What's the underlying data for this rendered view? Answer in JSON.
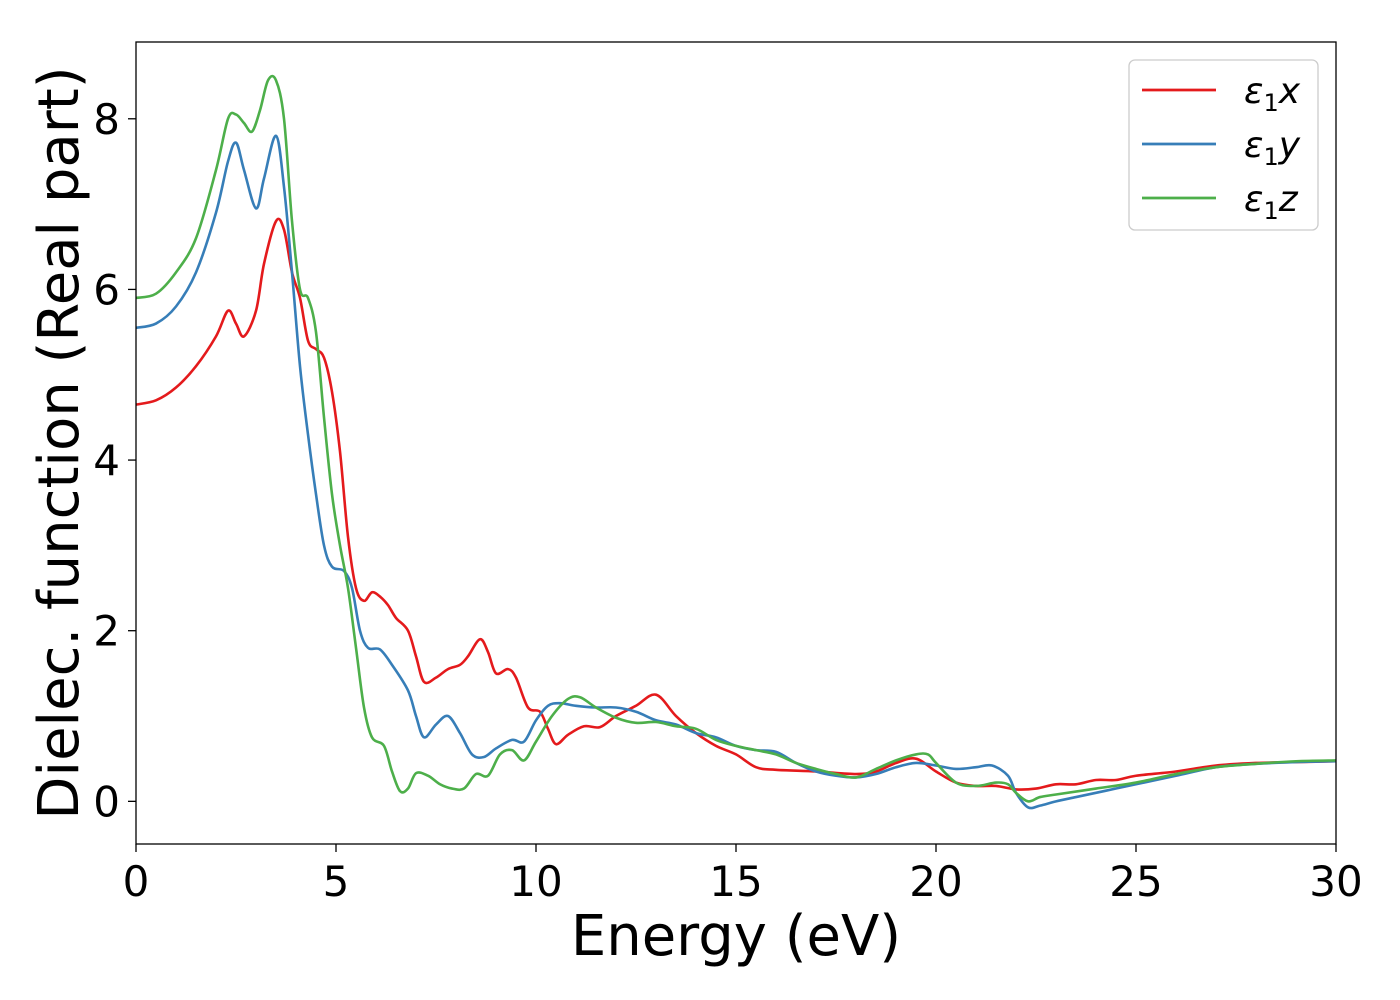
{
  "chart_data": {
    "type": "line",
    "xlabel": "Energy (eV)",
    "ylabel": "Dielec. function (Real part)",
    "xlim": [
      0,
      30
    ],
    "ylim": [
      -0.5,
      8.9
    ],
    "x_ticks": [
      "0",
      "5",
      "10",
      "15",
      "20",
      "25",
      "30"
    ],
    "y_ticks": [
      "0",
      "2",
      "4",
      "6",
      "8"
    ],
    "grid": false,
    "legend_position": "top-right",
    "series": [
      {
        "name": "ε1x",
        "legend_base": "ε",
        "legend_sub": "1",
        "legend_var": "x",
        "color": "#e41a1c",
        "points": [
          [
            0,
            4.65
          ],
          [
            0.5,
            4.7
          ],
          [
            1.0,
            4.85
          ],
          [
            1.5,
            5.1
          ],
          [
            2.0,
            5.45
          ],
          [
            2.3,
            5.75
          ],
          [
            2.5,
            5.6
          ],
          [
            2.7,
            5.45
          ],
          [
            3.0,
            5.75
          ],
          [
            3.2,
            6.3
          ],
          [
            3.5,
            6.8
          ],
          [
            3.7,
            6.7
          ],
          [
            3.9,
            6.2
          ],
          [
            4.1,
            5.9
          ],
          [
            4.3,
            5.4
          ],
          [
            4.5,
            5.3
          ],
          [
            4.7,
            5.2
          ],
          [
            4.9,
            4.8
          ],
          [
            5.1,
            4.1
          ],
          [
            5.3,
            3.1
          ],
          [
            5.5,
            2.5
          ],
          [
            5.7,
            2.35
          ],
          [
            5.9,
            2.45
          ],
          [
            6.1,
            2.4
          ],
          [
            6.3,
            2.3
          ],
          [
            6.5,
            2.15
          ],
          [
            6.8,
            2.0
          ],
          [
            7.0,
            1.7
          ],
          [
            7.2,
            1.4
          ],
          [
            7.5,
            1.45
          ],
          [
            7.8,
            1.55
          ],
          [
            8.1,
            1.6
          ],
          [
            8.3,
            1.7
          ],
          [
            8.6,
            1.9
          ],
          [
            8.8,
            1.75
          ],
          [
            9.0,
            1.5
          ],
          [
            9.3,
            1.55
          ],
          [
            9.5,
            1.45
          ],
          [
            9.8,
            1.1
          ],
          [
            10.1,
            1.05
          ],
          [
            10.3,
            0.85
          ],
          [
            10.5,
            0.67
          ],
          [
            10.8,
            0.78
          ],
          [
            11.2,
            0.88
          ],
          [
            11.6,
            0.87
          ],
          [
            12.0,
            1.0
          ],
          [
            12.5,
            1.12
          ],
          [
            13.0,
            1.25
          ],
          [
            13.5,
            1.0
          ],
          [
            14.0,
            0.8
          ],
          [
            14.5,
            0.65
          ],
          [
            15.0,
            0.55
          ],
          [
            15.5,
            0.4
          ],
          [
            16.0,
            0.37
          ],
          [
            17.0,
            0.35
          ],
          [
            18.0,
            0.32
          ],
          [
            18.5,
            0.35
          ],
          [
            19.0,
            0.45
          ],
          [
            19.5,
            0.5
          ],
          [
            20.0,
            0.35
          ],
          [
            20.5,
            0.22
          ],
          [
            21.0,
            0.18
          ],
          [
            21.5,
            0.18
          ],
          [
            22.0,
            0.14
          ],
          [
            22.5,
            0.15
          ],
          [
            23.0,
            0.2
          ],
          [
            23.5,
            0.2
          ],
          [
            24.0,
            0.25
          ],
          [
            24.5,
            0.25
          ],
          [
            25.0,
            0.3
          ],
          [
            26.0,
            0.35
          ],
          [
            27.0,
            0.42
          ],
          [
            28.0,
            0.45
          ],
          [
            29.0,
            0.46
          ],
          [
            30.0,
            0.47
          ]
        ]
      },
      {
        "name": "ε1y",
        "legend_base": "ε",
        "legend_sub": "1",
        "legend_var": "y",
        "color": "#377eb8",
        "points": [
          [
            0,
            5.55
          ],
          [
            0.5,
            5.6
          ],
          [
            1.0,
            5.8
          ],
          [
            1.5,
            6.2
          ],
          [
            2.0,
            6.9
          ],
          [
            2.3,
            7.5
          ],
          [
            2.5,
            7.72
          ],
          [
            2.7,
            7.4
          ],
          [
            3.0,
            6.95
          ],
          [
            3.2,
            7.3
          ],
          [
            3.5,
            7.8
          ],
          [
            3.7,
            7.2
          ],
          [
            3.9,
            6.2
          ],
          [
            4.1,
            5.1
          ],
          [
            4.3,
            4.3
          ],
          [
            4.5,
            3.6
          ],
          [
            4.7,
            3.0
          ],
          [
            4.9,
            2.75
          ],
          [
            5.2,
            2.7
          ],
          [
            5.4,
            2.5
          ],
          [
            5.6,
            2.0
          ],
          [
            5.8,
            1.8
          ],
          [
            6.1,
            1.78
          ],
          [
            6.4,
            1.6
          ],
          [
            6.8,
            1.3
          ],
          [
            7.0,
            1.0
          ],
          [
            7.2,
            0.75
          ],
          [
            7.5,
            0.9
          ],
          [
            7.8,
            1.0
          ],
          [
            8.1,
            0.8
          ],
          [
            8.4,
            0.55
          ],
          [
            8.7,
            0.52
          ],
          [
            9.0,
            0.62
          ],
          [
            9.4,
            0.72
          ],
          [
            9.7,
            0.7
          ],
          [
            10.0,
            0.95
          ],
          [
            10.3,
            1.12
          ],
          [
            10.6,
            1.15
          ],
          [
            11.0,
            1.12
          ],
          [
            11.5,
            1.1
          ],
          [
            12.0,
            1.1
          ],
          [
            12.5,
            1.05
          ],
          [
            13.0,
            0.95
          ],
          [
            13.5,
            0.9
          ],
          [
            14.0,
            0.8
          ],
          [
            14.5,
            0.75
          ],
          [
            15.0,
            0.65
          ],
          [
            15.5,
            0.6
          ],
          [
            16.0,
            0.58
          ],
          [
            16.5,
            0.45
          ],
          [
            17.0,
            0.35
          ],
          [
            17.5,
            0.3
          ],
          [
            18.0,
            0.28
          ],
          [
            18.5,
            0.32
          ],
          [
            19.0,
            0.4
          ],
          [
            19.5,
            0.45
          ],
          [
            20.0,
            0.42
          ],
          [
            20.5,
            0.38
          ],
          [
            21.0,
            0.4
          ],
          [
            21.4,
            0.42
          ],
          [
            21.8,
            0.3
          ],
          [
            22.0,
            0.1
          ],
          [
            22.3,
            -0.07
          ],
          [
            22.6,
            -0.05
          ],
          [
            23.0,
            0.0
          ],
          [
            23.5,
            0.05
          ],
          [
            24.0,
            0.1
          ],
          [
            24.5,
            0.15
          ],
          [
            25.0,
            0.2
          ],
          [
            26.0,
            0.3
          ],
          [
            27.0,
            0.4
          ],
          [
            28.0,
            0.44
          ],
          [
            29.0,
            0.46
          ],
          [
            30.0,
            0.47
          ]
        ]
      },
      {
        "name": "ε1z",
        "legend_base": "ε",
        "legend_sub": "1",
        "legend_var": "z",
        "color": "#4daf4a",
        "points": [
          [
            0,
            5.9
          ],
          [
            0.5,
            5.95
          ],
          [
            1.0,
            6.2
          ],
          [
            1.5,
            6.6
          ],
          [
            2.0,
            7.4
          ],
          [
            2.3,
            8.0
          ],
          [
            2.5,
            8.05
          ],
          [
            2.7,
            7.95
          ],
          [
            2.9,
            7.85
          ],
          [
            3.1,
            8.1
          ],
          [
            3.3,
            8.45
          ],
          [
            3.5,
            8.45
          ],
          [
            3.7,
            8.0
          ],
          [
            3.9,
            6.8
          ],
          [
            4.1,
            6.0
          ],
          [
            4.3,
            5.9
          ],
          [
            4.5,
            5.5
          ],
          [
            4.7,
            4.5
          ],
          [
            4.9,
            3.6
          ],
          [
            5.1,
            3.0
          ],
          [
            5.3,
            2.5
          ],
          [
            5.5,
            1.8
          ],
          [
            5.7,
            1.1
          ],
          [
            5.9,
            0.75
          ],
          [
            6.2,
            0.65
          ],
          [
            6.4,
            0.35
          ],
          [
            6.6,
            0.12
          ],
          [
            6.8,
            0.15
          ],
          [
            7.0,
            0.33
          ],
          [
            7.3,
            0.3
          ],
          [
            7.6,
            0.2
          ],
          [
            7.9,
            0.15
          ],
          [
            8.2,
            0.15
          ],
          [
            8.5,
            0.32
          ],
          [
            8.8,
            0.3
          ],
          [
            9.1,
            0.55
          ],
          [
            9.4,
            0.6
          ],
          [
            9.7,
            0.48
          ],
          [
            10.0,
            0.7
          ],
          [
            10.4,
            1.0
          ],
          [
            10.8,
            1.2
          ],
          [
            11.1,
            1.22
          ],
          [
            11.5,
            1.1
          ],
          [
            12.0,
            0.98
          ],
          [
            12.5,
            0.92
          ],
          [
            13.0,
            0.93
          ],
          [
            13.5,
            0.88
          ],
          [
            14.0,
            0.85
          ],
          [
            14.5,
            0.72
          ],
          [
            15.0,
            0.65
          ],
          [
            15.5,
            0.6
          ],
          [
            16.0,
            0.55
          ],
          [
            16.5,
            0.45
          ],
          [
            17.0,
            0.38
          ],
          [
            17.5,
            0.32
          ],
          [
            18.0,
            0.28
          ],
          [
            18.5,
            0.38
          ],
          [
            19.0,
            0.48
          ],
          [
            19.5,
            0.55
          ],
          [
            19.8,
            0.55
          ],
          [
            20.0,
            0.45
          ],
          [
            20.5,
            0.22
          ],
          [
            21.0,
            0.18
          ],
          [
            21.5,
            0.22
          ],
          [
            21.8,
            0.2
          ],
          [
            22.0,
            0.1
          ],
          [
            22.3,
            0.0
          ],
          [
            22.6,
            0.05
          ],
          [
            23.0,
            0.08
          ],
          [
            24.0,
            0.15
          ],
          [
            25.0,
            0.22
          ],
          [
            26.0,
            0.32
          ],
          [
            27.0,
            0.4
          ],
          [
            28.0,
            0.44
          ],
          [
            29.0,
            0.47
          ],
          [
            30.0,
            0.48
          ]
        ]
      }
    ]
  }
}
